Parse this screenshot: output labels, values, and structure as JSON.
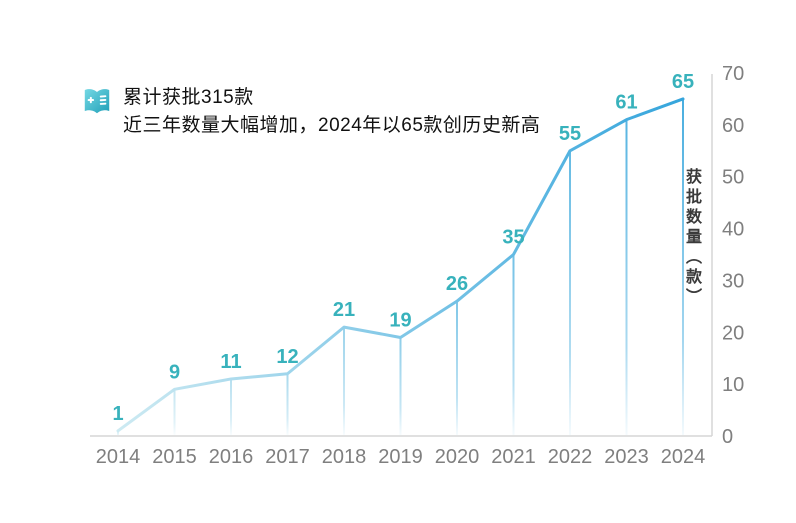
{
  "header": {
    "line1": "累计获批315款",
    "line2": "近三年数量大幅增加，2024年以65款创历史新高",
    "icon": "notebook-plus-icon"
  },
  "chart_data": {
    "type": "line",
    "title": "累计获批315款",
    "subtitle": "近三年数量大幅增加，2024年以65款创历史新高",
    "categories": [
      "2014",
      "2015",
      "2016",
      "2017",
      "2018",
      "2019",
      "2020",
      "2021",
      "2022",
      "2023",
      "2024"
    ],
    "values": [
      1,
      9,
      11,
      12,
      21,
      19,
      26,
      35,
      55,
      61,
      65
    ],
    "xlabel": "",
    "ylabel": "获批数量（款）",
    "yticks": [
      0,
      10,
      20,
      30,
      40,
      50,
      60,
      70
    ],
    "ylim": [
      0,
      70
    ],
    "grid": false,
    "legend_position": "none",
    "axis_side": "right",
    "colors": {
      "label_text": "#38b2bc",
      "line_start": "#cdeaf2",
      "line_end": "#35a5dc",
      "axis_line": "#d6d6d6",
      "tick_text": "#7f7f7f",
      "icon_light": "#6fd6e2",
      "icon_dark": "#25a3ba"
    }
  }
}
